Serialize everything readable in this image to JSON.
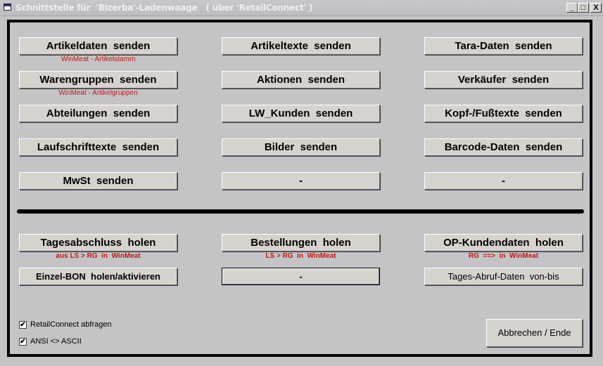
{
  "window": {
    "title": "Schnittstelle für  'Bizerba'-Ladenwaage   ( über 'RetailConnect' )",
    "minimize": "_",
    "maximize": "□",
    "close": "X"
  },
  "send_buttons": [
    [
      "Artikeldaten  senden",
      "Artikeltexte  senden",
      "Tara-Daten  senden"
    ],
    [
      "Warengruppen  senden",
      "Aktionen  senden",
      "Verkäufer  senden"
    ],
    [
      "Abteilungen  senden",
      "LW_Kunden  senden",
      "Kopf-/Fußtexte  senden"
    ],
    [
      "Laufschrifttexte  senden",
      "Bilder  senden",
      "Barcode-Daten  senden"
    ],
    [
      "MwSt  senden",
      "-",
      "-"
    ]
  ],
  "send_hints": {
    "artikeldaten": "WinMeat - Artikelstamm",
    "warengruppen": "WinMeat - Artikelgruppen"
  },
  "fetch_buttons": {
    "tagesabschluss": "Tagesabschluss  holen",
    "bestellungen": "Bestellungen  holen",
    "op_kunden": "OP-Kundendaten  holen",
    "einzel_bon": "Einzel-BON  holen/aktivieren",
    "empty": "-",
    "tages_abruf": "Tages-Abruf-Daten  von-bis"
  },
  "fetch_hints": {
    "tagesabschluss": "aus LS > RG  in  WinMeat",
    "bestellungen": "LS > RG  in  WinMeat",
    "op_kunden": "RG  ==>  in  WinMeat"
  },
  "checkboxes": [
    {
      "label": "RetailConnect abfragen",
      "checked": true,
      "mark": "✔"
    },
    {
      "label": "ANSI <> ASCII",
      "checked": true,
      "mark": "✔"
    }
  ],
  "end_button": "Abbrechen / Ende",
  "colors": {
    "background": "#c4c3c6",
    "button": "#d6d3ce",
    "hint_red": "#c01818"
  }
}
